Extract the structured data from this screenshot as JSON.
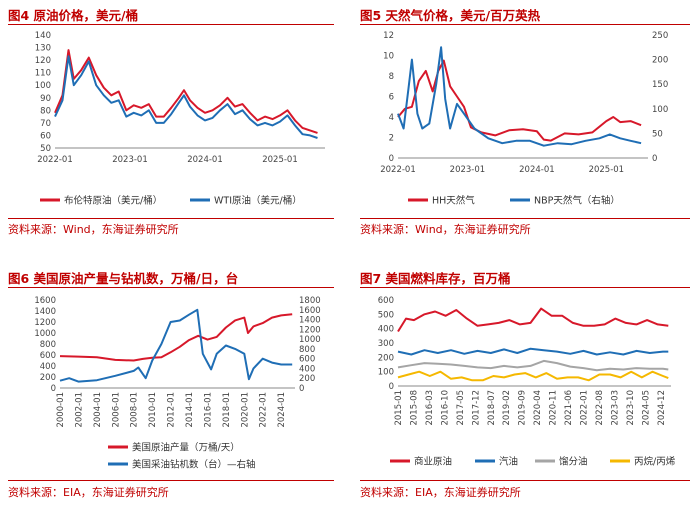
{
  "panels": {
    "p4": {
      "title": "图4  原油价格，美元/桶",
      "source": "资料来源：Wind，东海证券研究所"
    },
    "p5": {
      "title": "图5  天然气价格，美元/百万英热",
      "source": "资料来源：Wind，东海证券研究所"
    },
    "p6": {
      "title": "图6  美国原油产量与钻机数，万桶/日，台",
      "source": "资料来源：EIA，东海证券研究所"
    },
    "p7": {
      "title": "图7  美国燃料库存，百万桶",
      "source": "资料来源：EIA，东海证券研究所"
    }
  },
  "chart_data": [
    {
      "id": "p4",
      "type": "line",
      "title": "原油价格，美元/桶",
      "x_ticks": [
        "2022-01",
        "2023-01",
        "2024-01",
        "2025-01"
      ],
      "y_ticks": [
        50,
        60,
        70,
        80,
        90,
        100,
        110,
        120,
        130,
        140
      ],
      "ylim": [
        50,
        140
      ],
      "xlim": [
        2022.0,
        2025.6
      ],
      "series": [
        {
          "name": "布伦特原油（美元/桶）",
          "color": "#d7182a",
          "x": [
            2022.0,
            2022.1,
            2022.18,
            2022.25,
            2022.35,
            2022.45,
            2022.55,
            2022.65,
            2022.75,
            2022.85,
            2022.95,
            2023.05,
            2023.15,
            2023.25,
            2023.35,
            2023.45,
            2023.55,
            2023.65,
            2023.72,
            2023.8,
            2023.9,
            2024.0,
            2024.1,
            2024.2,
            2024.3,
            2024.4,
            2024.5,
            2024.6,
            2024.7,
            2024.8,
            2024.9,
            2025.0,
            2025.1,
            2025.2,
            2025.3,
            2025.4,
            2025.5
          ],
          "values": [
            78,
            92,
            128,
            105,
            112,
            122,
            108,
            98,
            92,
            95,
            80,
            84,
            82,
            85,
            75,
            75,
            82,
            90,
            96,
            88,
            82,
            78,
            80,
            84,
            90,
            83,
            85,
            78,
            72,
            75,
            73,
            76,
            80,
            72,
            66,
            64,
            62
          ]
        },
        {
          "name": "WTI原油（美元/桶）",
          "color": "#1f6eb5",
          "x": [
            2022.0,
            2022.1,
            2022.18,
            2022.25,
            2022.35,
            2022.45,
            2022.55,
            2022.65,
            2022.75,
            2022.85,
            2022.95,
            2023.05,
            2023.15,
            2023.25,
            2023.35,
            2023.45,
            2023.55,
            2023.65,
            2023.72,
            2023.8,
            2023.9,
            2024.0,
            2024.1,
            2024.2,
            2024.3,
            2024.4,
            2024.5,
            2024.6,
            2024.7,
            2024.8,
            2024.9,
            2025.0,
            2025.1,
            2025.2,
            2025.3,
            2025.4,
            2025.5
          ],
          "values": [
            75,
            88,
            123,
            100,
            108,
            119,
            100,
            92,
            86,
            88,
            75,
            78,
            76,
            80,
            70,
            70,
            77,
            86,
            92,
            83,
            76,
            72,
            74,
            80,
            85,
            77,
            80,
            73,
            68,
            70,
            68,
            71,
            76,
            68,
            61,
            60,
            58
          ]
        }
      ]
    },
    {
      "id": "p5",
      "type": "line",
      "title": "天然气价格，美元/百万英热",
      "x_ticks": [
        "2022-01",
        "2023-01",
        "2024-01",
        "2025-01"
      ],
      "y_left_ticks": [
        0,
        2,
        4,
        6,
        8,
        10,
        12
      ],
      "y_right_ticks": [
        0,
        50,
        100,
        150,
        200,
        250
      ],
      "ylim_left": [
        0,
        12
      ],
      "ylim_right": [
        0,
        250
      ],
      "xlim": [
        2022.0,
        2025.6
      ],
      "series": [
        {
          "name": "HH天然气",
          "axis": "left",
          "color": "#d7182a",
          "x": [
            2022.0,
            2022.1,
            2022.2,
            2022.3,
            2022.4,
            2022.5,
            2022.58,
            2022.66,
            2022.75,
            2022.85,
            2022.95,
            2023.05,
            2023.2,
            2023.4,
            2023.6,
            2023.8,
            2024.0,
            2024.1,
            2024.2,
            2024.4,
            2024.6,
            2024.8,
            2025.0,
            2025.1,
            2025.2,
            2025.35,
            2025.5
          ],
          "values": [
            4,
            4.8,
            5,
            7.5,
            8.5,
            6.5,
            8.5,
            9.5,
            7,
            6,
            5,
            3,
            2.5,
            2.2,
            2.7,
            2.8,
            2.6,
            1.8,
            1.7,
            2.4,
            2.3,
            2.5,
            3.6,
            4,
            3.5,
            3.6,
            3.2
          ]
        },
        {
          "name": "NBP天然气（右轴）",
          "axis": "right",
          "color": "#1f6eb5",
          "x": [
            2022.0,
            2022.08,
            2022.15,
            2022.2,
            2022.28,
            2022.35,
            2022.45,
            2022.55,
            2022.62,
            2022.68,
            2022.75,
            2022.85,
            2022.95,
            2023.1,
            2023.3,
            2023.5,
            2023.7,
            2023.9,
            2024.1,
            2024.3,
            2024.5,
            2024.7,
            2024.9,
            2025.05,
            2025.2,
            2025.35,
            2025.5
          ],
          "values": [
            90,
            60,
            140,
            200,
            90,
            60,
            70,
            150,
            225,
            120,
            60,
            110,
            90,
            60,
            40,
            30,
            35,
            35,
            25,
            30,
            28,
            35,
            40,
            48,
            40,
            35,
            30
          ]
        }
      ]
    },
    {
      "id": "p6",
      "type": "line",
      "title": "美国原油产量与钻机数，万桶/日，台",
      "x_ticks": [
        "2000-01",
        "2002-01",
        "2004-01",
        "2006-01",
        "2008-01",
        "2010-01",
        "2012-01",
        "2014-01",
        "2016-01",
        "2018-01",
        "2020-01",
        "2022-01",
        "2024-01"
      ],
      "y_left_ticks": [
        0,
        200,
        400,
        600,
        800,
        1000,
        1200,
        1400,
        1600
      ],
      "y_right_ticks": [
        0,
        200,
        400,
        600,
        800,
        1000,
        1200,
        1400,
        1600,
        1800
      ],
      "ylim_left": [
        0,
        1600
      ],
      "ylim_right": [
        0,
        1800
      ],
      "xlim": [
        2000.0,
        2025.5
      ],
      "series": [
        {
          "name": "美国原油产量（万桶/天）",
          "axis": "left",
          "color": "#d7182a",
          "x": [
            2000,
            2002,
            2004,
            2006,
            2008,
            2009,
            2010,
            2011,
            2012,
            2013,
            2014,
            2015,
            2016,
            2017,
            2018,
            2019,
            2020,
            2020.4,
            2021,
            2022,
            2023,
            2024,
            2025.2
          ],
          "values": [
            580,
            570,
            560,
            510,
            500,
            530,
            550,
            560,
            650,
            750,
            870,
            950,
            880,
            930,
            1100,
            1230,
            1280,
            1000,
            1120,
            1180,
            1280,
            1320,
            1340
          ]
        },
        {
          "name": "美国采油钻机数（台）—右轴",
          "axis": "right",
          "color": "#1f6eb5",
          "x": [
            2000,
            2001,
            2002,
            2004,
            2006,
            2008,
            2008.5,
            2009.3,
            2010,
            2011,
            2012,
            2013,
            2014,
            2014.9,
            2015.5,
            2016.4,
            2017,
            2018,
            2019,
            2020,
            2020.5,
            2021,
            2022,
            2023,
            2024,
            2025.2
          ],
          "values": [
            150,
            200,
            130,
            160,
            250,
            350,
            420,
            200,
            560,
            900,
            1350,
            1380,
            1500,
            1600,
            700,
            380,
            700,
            870,
            800,
            700,
            180,
            400,
            600,
            520,
            480,
            480
          ]
        }
      ]
    },
    {
      "id": "p7",
      "type": "line",
      "title": "美国燃料库存，百万桶",
      "x_ticks": [
        "2015-01",
        "2015-08",
        "2016-03",
        "2016-10",
        "2017-05",
        "2017-12",
        "2018-07",
        "2019-02",
        "2019-09",
        "2020-04",
        "2020-11",
        "2021-06",
        "2022-01",
        "2022-08",
        "2023-03",
        "2023-10",
        "2024-05",
        "2024-12"
      ],
      "y_ticks": [
        0,
        100,
        200,
        300,
        400,
        500,
        600
      ],
      "ylim": [
        0,
        600
      ],
      "xlim": [
        2015.0,
        2025.3
      ],
      "series": [
        {
          "name": "商业原油",
          "color": "#d7182a",
          "x": [
            2015.0,
            2015.3,
            2015.6,
            2016.0,
            2016.4,
            2016.8,
            2017.2,
            2017.6,
            2018.0,
            2018.4,
            2018.8,
            2019.2,
            2019.6,
            2020.0,
            2020.4,
            2020.8,
            2021.2,
            2021.6,
            2022.0,
            2022.4,
            2022.8,
            2023.2,
            2023.6,
            2024.0,
            2024.4,
            2024.8,
            2025.2
          ],
          "values": [
            380,
            470,
            460,
            500,
            520,
            490,
            530,
            470,
            420,
            430,
            440,
            460,
            430,
            440,
            540,
            490,
            490,
            440,
            420,
            420,
            430,
            470,
            440,
            430,
            460,
            430,
            420
          ]
        },
        {
          "name": "汽油",
          "color": "#1f6eb5",
          "x": [
            2015.0,
            2015.5,
            2016.0,
            2016.5,
            2017.0,
            2017.5,
            2018.0,
            2018.5,
            2019.0,
            2019.5,
            2020.0,
            2020.5,
            2021.0,
            2021.5,
            2022.0,
            2022.5,
            2023.0,
            2023.5,
            2024.0,
            2024.5,
            2025.0,
            2025.2
          ],
          "values": [
            240,
            220,
            250,
            230,
            250,
            225,
            245,
            230,
            255,
            230,
            260,
            250,
            240,
            225,
            245,
            220,
            235,
            220,
            245,
            230,
            240,
            240
          ]
        },
        {
          "name": "馏分油",
          "color": "#a5a5a5",
          "x": [
            2015.0,
            2015.5,
            2016.0,
            2016.5,
            2017.0,
            2017.5,
            2018.0,
            2018.5,
            2019.0,
            2019.5,
            2020.0,
            2020.5,
            2021.0,
            2021.5,
            2022.0,
            2022.5,
            2023.0,
            2023.5,
            2024.0,
            2024.5,
            2025.0,
            2025.2
          ],
          "values": [
            130,
            145,
            160,
            155,
            150,
            140,
            130,
            125,
            140,
            130,
            140,
            175,
            160,
            135,
            125,
            110,
            120,
            115,
            125,
            120,
            120,
            115
          ]
        },
        {
          "name": "丙烷/丙烯",
          "color": "#f5b800",
          "x": [
            2015.0,
            2015.4,
            2015.8,
            2016.2,
            2016.6,
            2017.0,
            2017.4,
            2017.8,
            2018.2,
            2018.6,
            2019.0,
            2019.4,
            2019.8,
            2020.2,
            2020.6,
            2021.0,
            2021.4,
            2021.8,
            2022.2,
            2022.6,
            2023.0,
            2023.4,
            2023.8,
            2024.2,
            2024.6,
            2025.0,
            2025.2
          ],
          "values": [
            60,
            80,
            100,
            70,
            100,
            50,
            60,
            40,
            40,
            70,
            60,
            80,
            90,
            60,
            90,
            50,
            60,
            60,
            40,
            80,
            80,
            60,
            100,
            60,
            100,
            70,
            55
          ]
        }
      ]
    }
  ]
}
